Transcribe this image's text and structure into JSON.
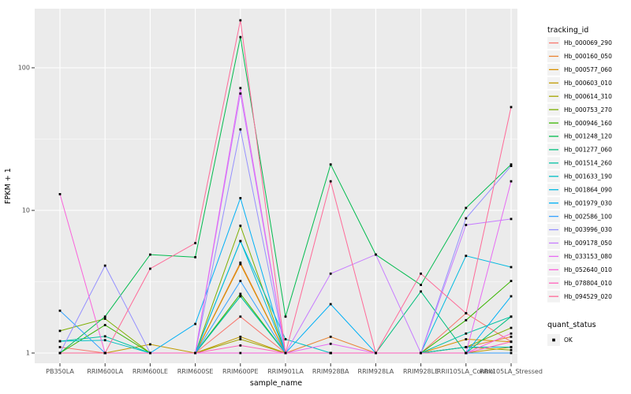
{
  "figure": {
    "background": "#FFFFFF",
    "panel_background": "#EBEBEB",
    "gridline_color": "#FFFFFF",
    "tick_color": "#333333",
    "tick_label_color": "#4D4D4D",
    "axis_title_color": "#000000",
    "point_color": "#000000"
  },
  "chart_data": {
    "type": "line",
    "title": "",
    "xlabel": "sample_name",
    "ylabel": "FPKM + 1",
    "y_scale": "log10",
    "y_ticks": [
      1,
      10,
      100
    ],
    "y_minor_ticks": [
      3.1623,
      31.623
    ],
    "ylim": [
      0.84,
      260
    ],
    "grid": "on",
    "point_shape": "small black square on every data point",
    "categories": [
      "PB350LA",
      "RRIM600LA",
      "RRIM600LE",
      "RRIM600SE",
      "RRIM600PE",
      "RRIM901LA",
      "RRIM928BA",
      "RRIM928LA",
      "RRIM928LE",
      "RRII105LA_Control",
      "RRII105LA_Stressed"
    ],
    "legend": {
      "title": "tracking_id",
      "position": "right"
    },
    "quant_legend": {
      "title": "quant_status",
      "items": [
        {
          "label": "OK",
          "marker": "square",
          "color": "#000000"
        }
      ]
    },
    "series": [
      {
        "name": "Hb_000069_290",
        "color": "#F8766D",
        "values": [
          1.1,
          1,
          1,
          1,
          1.8,
          1,
          1,
          1,
          1,
          1.9,
          1.2
        ]
      },
      {
        "name": "Hb_000160_050",
        "color": "#EA8331",
        "values": [
          1,
          1,
          1,
          1,
          4.3,
          1,
          1.3,
          1,
          1,
          1.1,
          1.3
        ]
      },
      {
        "name": "Hb_000577_060",
        "color": "#D89000",
        "values": [
          1,
          1,
          1,
          1,
          4.2,
          1,
          1,
          1,
          1,
          1.25,
          1.2
        ]
      },
      {
        "name": "Hb_000603_010",
        "color": "#C09B00",
        "values": [
          1,
          1,
          1.15,
          1,
          1.3,
          1,
          1,
          1,
          1,
          1,
          1.1
        ]
      },
      {
        "name": "Hb_000614_310",
        "color": "#A3A500",
        "values": [
          1,
          1,
          1,
          1,
          1.25,
          1,
          1,
          1,
          1,
          1.1,
          1.05
        ]
      },
      {
        "name": "Hb_000753_270",
        "color": "#7CAE00",
        "values": [
          1.43,
          1.74,
          1,
          1,
          7.8,
          1,
          1,
          1,
          1,
          1.1,
          1.5
        ]
      },
      {
        "name": "Hb_000946_160",
        "color": "#39B600",
        "values": [
          1,
          1.57,
          1,
          1,
          2.6,
          1,
          1,
          1,
          1,
          1.7,
          3.2
        ]
      },
      {
        "name": "Hb_001248_120",
        "color": "#00BB4E",
        "values": [
          1,
          1.8,
          4.9,
          4.7,
          164,
          1.8,
          21,
          4.9,
          3.0,
          10.4,
          21
        ]
      },
      {
        "name": "Hb_001277_060",
        "color": "#00BF7D",
        "values": [
          1,
          1,
          1,
          1,
          2.5,
          1,
          1,
          1,
          2.7,
          1,
          1.8
        ]
      },
      {
        "name": "Hb_001514_260",
        "color": "#00C1A3",
        "values": [
          1.21,
          1.31,
          1,
          1,
          2.5,
          1,
          1,
          1,
          1,
          1.37,
          1.8
        ]
      },
      {
        "name": "Hb_001633_190",
        "color": "#00BFC4",
        "values": [
          1.21,
          1.23,
          1,
          1,
          6.1,
          1.25,
          1,
          1,
          1,
          1.1,
          1.1
        ]
      },
      {
        "name": "Hb_001864_090",
        "color": "#00BAE0",
        "values": [
          1,
          1,
          1,
          1,
          6.1,
          1,
          1,
          1,
          1,
          4.8,
          4.0
        ]
      },
      {
        "name": "Hb_001979_030",
        "color": "#00B0F6",
        "values": [
          1,
          1,
          1,
          1.6,
          12.2,
          1,
          2.2,
          1,
          1,
          1,
          2.5
        ]
      },
      {
        "name": "Hb_002586_100",
        "color": "#35A2FF",
        "values": [
          1.98,
          1,
          1,
          1,
          3.2,
          1,
          1,
          1,
          1,
          1,
          1
        ]
      },
      {
        "name": "Hb_003996_030",
        "color": "#9590FF",
        "values": [
          1,
          4.1,
          1,
          1,
          37,
          1,
          1,
          1,
          1,
          8.8,
          20.5
        ]
      },
      {
        "name": "Hb_009178_050",
        "color": "#C77CFF",
        "values": [
          1,
          1,
          1,
          1,
          66,
          1,
          3.6,
          4.9,
          1,
          7.9,
          8.7
        ]
      },
      {
        "name": "Hb_033153_080",
        "color": "#E76BF3",
        "values": [
          1,
          1,
          1,
          1,
          72,
          1,
          1.16,
          1,
          1,
          1,
          16
        ]
      },
      {
        "name": "Hb_052640_010",
        "color": "#FA62DB",
        "values": [
          13,
          1,
          1,
          1,
          1,
          1,
          1,
          1,
          1,
          1,
          1.37
        ]
      },
      {
        "name": "Hb_078804_010",
        "color": "#FF62BC",
        "values": [
          1,
          1,
          1,
          1,
          1.13,
          1,
          1,
          1,
          1,
          1,
          1.2
        ]
      },
      {
        "name": "Hb_094529_020",
        "color": "#FF6A98",
        "values": [
          1,
          1,
          3.9,
          5.9,
          215,
          1,
          16,
          1,
          3.6,
          1.9,
          53
        ]
      }
    ]
  }
}
